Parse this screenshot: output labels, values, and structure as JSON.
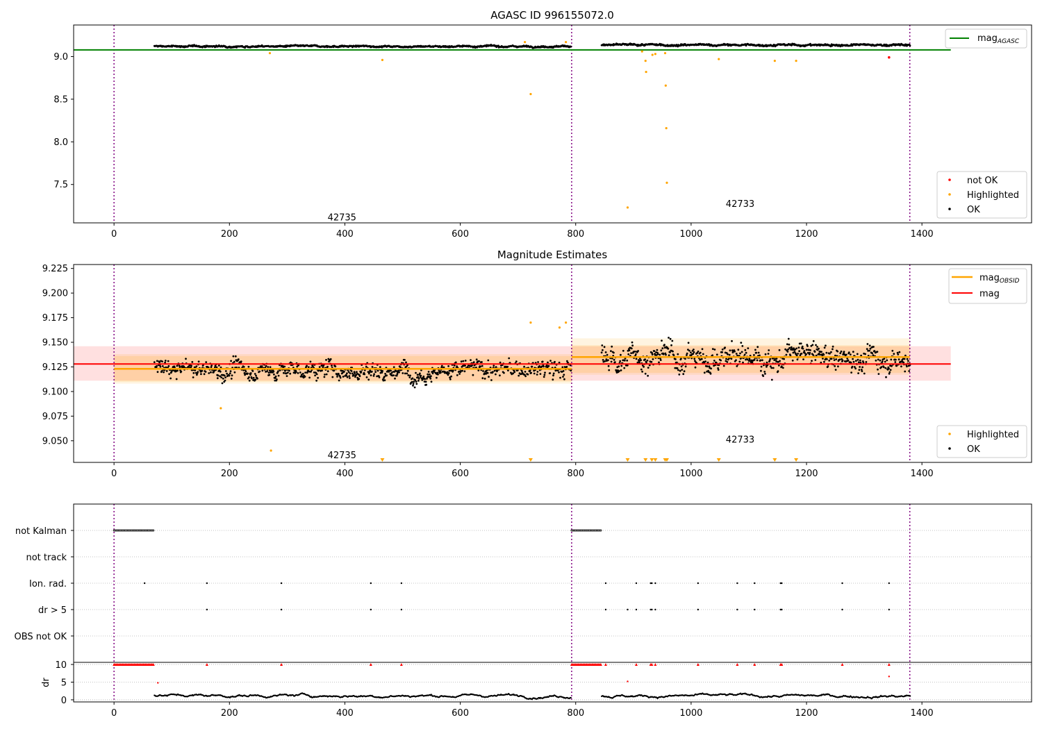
{
  "colors": {
    "ok": "#000000",
    "highlighted": "#ffa500",
    "not_ok": "#ff0000",
    "mag_agasc": "#008000",
    "mag_obsid": "#ffa500",
    "mag": "#ff0000",
    "obs_boundary": "#800080",
    "grid": "#b0b0b0"
  },
  "chart_data": [
    {
      "type": "scatter",
      "title": "AGASC ID 996155072.0",
      "xlim": [
        -70,
        1590
      ],
      "ylim": [
        7.05,
        9.37
      ],
      "xticks": [
        0,
        200,
        400,
        600,
        800,
        1000,
        1200,
        1400
      ],
      "yticks": [
        7.5,
        8.0,
        8.5,
        9.0
      ],
      "obs_boundaries": [
        0,
        793,
        1379
      ],
      "obsid_labels": [
        {
          "text": "42735",
          "x": 395,
          "y": 7.11
        },
        {
          "text": "42733",
          "x": 1085,
          "y": 7.27
        }
      ],
      "legend_lines": [
        {
          "name": "mag_{AGASC}",
          "value": 9.078
        }
      ],
      "legend_points": [
        "not OK",
        "Highlighted",
        "OK"
      ],
      "mag_agasc": {
        "value": 9.078,
        "x": [
          -70,
          1450
        ]
      },
      "ok_series": {
        "segments": [
          {
            "x0": 70,
            "x1": 792,
            "base": 9.12,
            "noise": 0.015
          },
          {
            "x0": 845,
            "x1": 1380,
            "base": 9.135,
            "noise": 0.018
          }
        ]
      },
      "highlighted": {
        "x": [
          270,
          465,
          722,
          712,
          783,
          915,
          921,
          922,
          933,
          938,
          955,
          956,
          957,
          958,
          890,
          1048,
          1145,
          1182
        ],
        "y": [
          9.04,
          8.96,
          8.56,
          9.17,
          9.17,
          9.06,
          8.95,
          8.82,
          9.02,
          9.03,
          9.04,
          8.66,
          8.16,
          7.52,
          7.23,
          8.97,
          8.95,
          8.95
        ]
      },
      "not_ok": {
        "x": [
          1343
        ],
        "y": [
          8.99
        ]
      }
    },
    {
      "type": "scatter",
      "title": "Magnitude Estimates",
      "xlim": [
        -70,
        1590
      ],
      "ylim": [
        9.028,
        9.229
      ],
      "xticks": [
        0,
        200,
        400,
        600,
        800,
        1000,
        1200,
        1400
      ],
      "yticks": [
        9.05,
        9.075,
        9.1,
        9.125,
        9.15,
        9.175,
        9.2,
        9.225
      ],
      "ytick_labels": [
        "9.050",
        "9.075",
        "9.100",
        "9.125",
        "9.150",
        "9.175",
        "9.200",
        "9.225"
      ],
      "obs_boundaries": [
        0,
        793,
        1379
      ],
      "obsid_labels": [
        {
          "text": "42735",
          "x": 395,
          "y": 9.035
        },
        {
          "text": "42733",
          "x": 1085,
          "y": 9.051
        }
      ],
      "legend_lines": [
        {
          "name": "mag_{OBSID}"
        },
        {
          "name": "mag"
        }
      ],
      "legend_points": [
        "Highlighted",
        "OK"
      ],
      "mag": {
        "value": 9.128,
        "band": [
          9.111,
          9.146
        ],
        "x": [
          -70,
          1450
        ]
      },
      "mag_obsid": [
        {
          "x": [
            0,
            793
          ],
          "value": 9.123,
          "band_outer": [
            9.108,
            9.138
          ],
          "band_inner": [
            9.11,
            9.136
          ]
        },
        {
          "x": [
            793,
            1379
          ],
          "value": 9.135,
          "band_outer": [
            9.117,
            9.154
          ],
          "band_inner": [
            9.119,
            9.147
          ]
        }
      ],
      "ok_series": {
        "segments": [
          {
            "x0": 70,
            "x1": 792,
            "base": 9.122,
            "noise": 0.014
          },
          {
            "x0": 845,
            "x1": 1380,
            "base": 9.135,
            "noise": 0.02
          }
        ]
      },
      "highlighted": {
        "x": [
          185,
          272,
          722,
          772,
          783
        ],
        "y": [
          9.083,
          9.04,
          9.17,
          9.165,
          9.17
        ]
      },
      "highlighted_out_of_range": {
        "x": [
          465,
          722,
          890,
          921,
          932,
          938,
          955,
          958,
          1048,
          1145,
          1182
        ]
      }
    },
    {
      "type": "scatter",
      "flag_rows": [
        "not Kalman",
        "not track",
        "Ion. rad.",
        "dr > 5",
        "OBS not OK"
      ],
      "xlim": [
        -70,
        1590
      ],
      "xticks": [
        0,
        200,
        400,
        600,
        800,
        1000,
        1200,
        1400
      ],
      "obs_boundaries": [
        0,
        793,
        1379
      ],
      "not_kalman": [
        {
          "x0": 0,
          "x1": 70
        },
        {
          "x0": 793,
          "x1": 845
        }
      ],
      "ion_rad_x": [
        53,
        161,
        290,
        445,
        498,
        852,
        905,
        930,
        932,
        938,
        1012,
        1080,
        1110,
        1155,
        1157,
        1262,
        1343
      ],
      "dr_gt5_x": [
        161,
        290,
        445,
        498,
        852,
        890,
        905,
        930,
        932,
        938,
        1012,
        1080,
        1110,
        1155,
        1157,
        1262,
        1343
      ],
      "dr": {
        "ylabel": "dr",
        "yticks": [
          0,
          5,
          10
        ],
        "ylim": [
          -0.6,
          10.6
        ],
        "clip_value": 10,
        "red_x": [
          161,
          290,
          445,
          498,
          852,
          905,
          930,
          932,
          938,
          1012,
          1080,
          1110,
          1155,
          1157,
          1262,
          1343
        ],
        "red_mid": [
          {
            "x": 76,
            "y": 4.8
          },
          {
            "x": 890,
            "y": 5.2
          },
          {
            "x": 1343,
            "y": 6.6
          }
        ],
        "black_segments": [
          {
            "x0": 70,
            "x1": 792,
            "base": 1.2
          },
          {
            "x0": 845,
            "x1": 1380,
            "base": 1.1
          }
        ]
      }
    }
  ]
}
